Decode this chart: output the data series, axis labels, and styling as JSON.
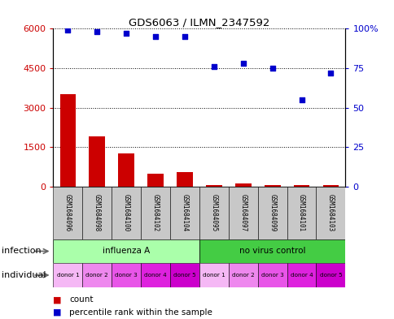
{
  "title": "GDS6063 / ILMN_2347592",
  "samples": [
    "GSM1684096",
    "GSM1684098",
    "GSM1684100",
    "GSM1684102",
    "GSM1684104",
    "GSM1684095",
    "GSM1684097",
    "GSM1684099",
    "GSM1684101",
    "GSM1684103"
  ],
  "counts": [
    3500,
    1900,
    1250,
    500,
    550,
    70,
    110,
    60,
    45,
    45
  ],
  "percentiles": [
    99,
    98,
    97,
    95,
    95,
    76,
    78,
    75,
    55,
    72
  ],
  "ylim_left": [
    0,
    6000
  ],
  "ylim_right": [
    0,
    100
  ],
  "yticks_left": [
    0,
    1500,
    3000,
    4500,
    6000
  ],
  "yticks_right": [
    0,
    25,
    50,
    75,
    100
  ],
  "bar_color": "#cc0000",
  "dot_color": "#0000cc",
  "infection_groups": [
    {
      "label": "influenza A",
      "start": 0,
      "end": 5,
      "color": "#aaffaa"
    },
    {
      "label": "no virus control",
      "start": 5,
      "end": 10,
      "color": "#44cc44"
    }
  ],
  "individual_labels": [
    "donor 1",
    "donor 2",
    "donor 3",
    "donor 4",
    "donor 5",
    "donor 1",
    "donor 2",
    "donor 3",
    "donor 4",
    "donor 5"
  ],
  "individual_colors": [
    "#f5b8f5",
    "#ee88ee",
    "#e855e8",
    "#de22de",
    "#cc00cc",
    "#f5b8f5",
    "#ee88ee",
    "#e855e8",
    "#de22de",
    "#cc00cc"
  ],
  "infection_label": "infection",
  "individual_label": "individual",
  "legend_count_label": "count",
  "legend_pct_label": "percentile rank within the sample",
  "bar_color_red": "#cc0000",
  "dot_color_blue": "#0000cc"
}
